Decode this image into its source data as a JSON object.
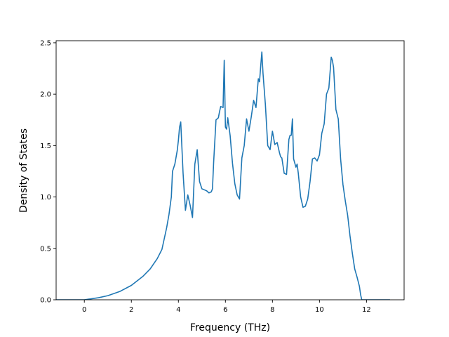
{
  "chart_data": {
    "type": "line",
    "title": "",
    "xlabel": "Frequency (THz)",
    "ylabel": "Density of States",
    "xlim": [
      -1.2,
      13.6
    ],
    "ylim": [
      0,
      2.52
    ],
    "xticks": [
      0,
      2,
      4,
      6,
      8,
      10,
      12
    ],
    "xtick_labels": [
      "0",
      "2",
      "4",
      "6",
      "8",
      "10",
      "12"
    ],
    "yticks": [
      0.0,
      0.5,
      1.0,
      1.5,
      2.0,
      2.5
    ],
    "ytick_labels": [
      "0.0",
      "0.5",
      "1.0",
      "1.5",
      "2.0",
      "2.5"
    ],
    "grid": false,
    "legend": "none",
    "colors": {
      "line": "#1f77b4",
      "axes": "#000000",
      "background": "#ffffff"
    },
    "series": [
      {
        "x": [
          -1.2,
          -0.5,
          0.0,
          0.3,
          0.6,
          1.0,
          1.5,
          2.0,
          2.5,
          2.8,
          3.1,
          3.3,
          3.5,
          3.6,
          3.7,
          3.75,
          3.85,
          3.95,
          4.0,
          4.05,
          4.1,
          4.2,
          4.3,
          4.4,
          4.5,
          4.6,
          4.7,
          4.8,
          4.9,
          5.0,
          5.1,
          5.2,
          5.3,
          5.4,
          5.45,
          5.5,
          5.6,
          5.7,
          5.75,
          5.8,
          5.9,
          5.95,
          6.0,
          6.05,
          6.1,
          6.2,
          6.3,
          6.4,
          6.5,
          6.6,
          6.7,
          6.8,
          6.9,
          7.0,
          7.1,
          7.2,
          7.3,
          7.4,
          7.45,
          7.5,
          7.55,
          7.6,
          7.65,
          7.7,
          7.8,
          7.9,
          8.0,
          8.1,
          8.2,
          8.3,
          8.35,
          8.4,
          8.5,
          8.6,
          8.7,
          8.75,
          8.8,
          8.85,
          8.9,
          9.0,
          9.05,
          9.1,
          9.2,
          9.3,
          9.4,
          9.5,
          9.6,
          9.7,
          9.8,
          9.9,
          10.0,
          10.1,
          10.2,
          10.3,
          10.4,
          10.5,
          10.55,
          10.6,
          10.7,
          10.8,
          10.9,
          11.0,
          11.1,
          11.2,
          11.3,
          11.4,
          11.5,
          11.6,
          11.7,
          11.75,
          11.8,
          12.0,
          12.5,
          13.0
        ],
        "y": [
          0.0,
          0.0,
          0.0,
          0.01,
          0.02,
          0.04,
          0.08,
          0.14,
          0.23,
          0.3,
          0.4,
          0.49,
          0.7,
          0.83,
          1.0,
          1.25,
          1.32,
          1.45,
          1.55,
          1.68,
          1.73,
          1.23,
          0.87,
          1.02,
          0.92,
          0.8,
          1.32,
          1.46,
          1.15,
          1.08,
          1.07,
          1.06,
          1.04,
          1.05,
          1.08,
          1.34,
          1.75,
          1.77,
          1.83,
          1.88,
          1.87,
          2.33,
          1.68,
          1.66,
          1.77,
          1.6,
          1.33,
          1.13,
          1.02,
          0.98,
          1.38,
          1.5,
          1.76,
          1.64,
          1.78,
          1.94,
          1.87,
          2.15,
          2.12,
          2.27,
          2.41,
          2.2,
          2.05,
          1.9,
          1.5,
          1.46,
          1.64,
          1.51,
          1.53,
          1.43,
          1.39,
          1.38,
          1.23,
          1.22,
          1.56,
          1.6,
          1.6,
          1.76,
          1.37,
          1.29,
          1.32,
          1.23,
          1.0,
          0.9,
          0.91,
          0.98,
          1.15,
          1.37,
          1.38,
          1.35,
          1.41,
          1.62,
          1.71,
          2.0,
          2.06,
          2.36,
          2.33,
          2.26,
          1.85,
          1.76,
          1.37,
          1.12,
          0.96,
          0.82,
          0.62,
          0.45,
          0.3,
          0.22,
          0.13,
          0.05,
          0.0,
          0.0,
          0.0,
          0.0
        ]
      }
    ]
  }
}
